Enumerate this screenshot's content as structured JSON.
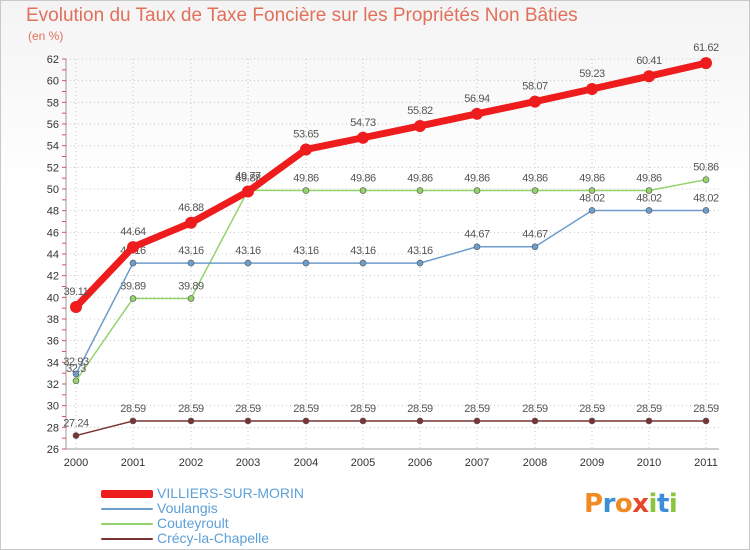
{
  "title": "Evolution du Taux de Taxe Foncière sur les Propriétés Non Bâties",
  "unit_label": "(en %)",
  "colors": {
    "VILLIERS-SUR-MORIN": "#ee1c1c",
    "Voulangis": "#6d9dcc",
    "Couteyroult": "#93d36a",
    "Crécy-la-Chapelle": "#7a3434",
    "grid": "#c8c8c8",
    "axis_text": "#333333",
    "label_text": "#555555"
  },
  "logo": {
    "letters": [
      "P",
      "r",
      "o",
      "x",
      "i",
      "t",
      "i"
    ],
    "letter_colors": [
      "#f08a24",
      "#3b8fd8",
      "#f08a24",
      "#e8462a",
      "#8cc63f",
      "#3b8fd8",
      "#8cc63f"
    ]
  },
  "chart_data": {
    "type": "line",
    "title": "Evolution du Taux de Taxe Foncière sur les Propriétés Non Bâties",
    "ylabel": "(en %)",
    "xlabel": "",
    "ylim": [
      26,
      62
    ],
    "y_ticks": [
      26,
      28,
      30,
      32,
      34,
      36,
      38,
      40,
      42,
      44,
      46,
      48,
      50,
      52,
      54,
      56,
      58,
      60,
      62
    ],
    "x": [
      "2000",
      "2001",
      "2002",
      "2003",
      "2004",
      "2005",
      "2006",
      "2007",
      "2008",
      "2009",
      "2010",
      "2011"
    ],
    "grid": true,
    "legend_position": "bottom-left",
    "series": [
      {
        "name": "Crécy-la-Chapelle",
        "values": [
          27.24,
          28.59,
          28.59,
          28.59,
          28.59,
          28.59,
          28.59,
          28.59,
          28.59,
          28.59,
          28.59,
          28.59
        ],
        "labels": [
          "27.24",
          "28.59",
          "28.59",
          "28.59",
          "28.59",
          "28.59",
          "28.59",
          "28.59",
          "28.59",
          "28.59",
          "28.59",
          "28.59"
        ]
      },
      {
        "name": "Couteyroult",
        "values": [
          32.3,
          39.89,
          39.89,
          49.88,
          49.86,
          49.86,
          49.86,
          49.86,
          49.86,
          49.86,
          49.86,
          50.86
        ],
        "labels": [
          "32.3",
          "39.89",
          "39.89",
          "49.88",
          "49.86",
          "49.86",
          "49.86",
          "49.86",
          "49.86",
          "49.86",
          "49.86",
          "50.86"
        ]
      },
      {
        "name": "Voulangis",
        "values": [
          32.93,
          43.16,
          43.16,
          43.16,
          43.16,
          43.16,
          43.16,
          44.67,
          44.67,
          48.02,
          48.02,
          48.02
        ],
        "labels": [
          "32.93",
          "43.16",
          "43.16",
          "43.16",
          "43.16",
          "43.16",
          "43.16",
          "44.67",
          "44.67",
          "48.02",
          "48.02",
          "48.02"
        ]
      },
      {
        "name": "VILLIERS-SUR-MORIN",
        "values": [
          39.11,
          44.64,
          46.88,
          49.77,
          53.65,
          54.73,
          55.82,
          56.94,
          58.07,
          59.23,
          60.41,
          61.62
        ],
        "labels": [
          "39.11",
          "44.64",
          "46.88",
          "49.77",
          "53.65",
          "54.73",
          "55.82",
          "56.94",
          "58.07",
          "59.23",
          "60.41",
          "61.62"
        ]
      }
    ]
  },
  "legend": [
    {
      "name": "VILLIERS-SUR-MORIN",
      "label": "VILLIERS-SUR-MORIN"
    },
    {
      "name": "Voulangis",
      "label": "Voulangis"
    },
    {
      "name": "Couteyroult",
      "label": "Couteyroult"
    },
    {
      "name": "Crécy-la-Chapelle",
      "label": "Crécy-la-Chapelle"
    }
  ]
}
